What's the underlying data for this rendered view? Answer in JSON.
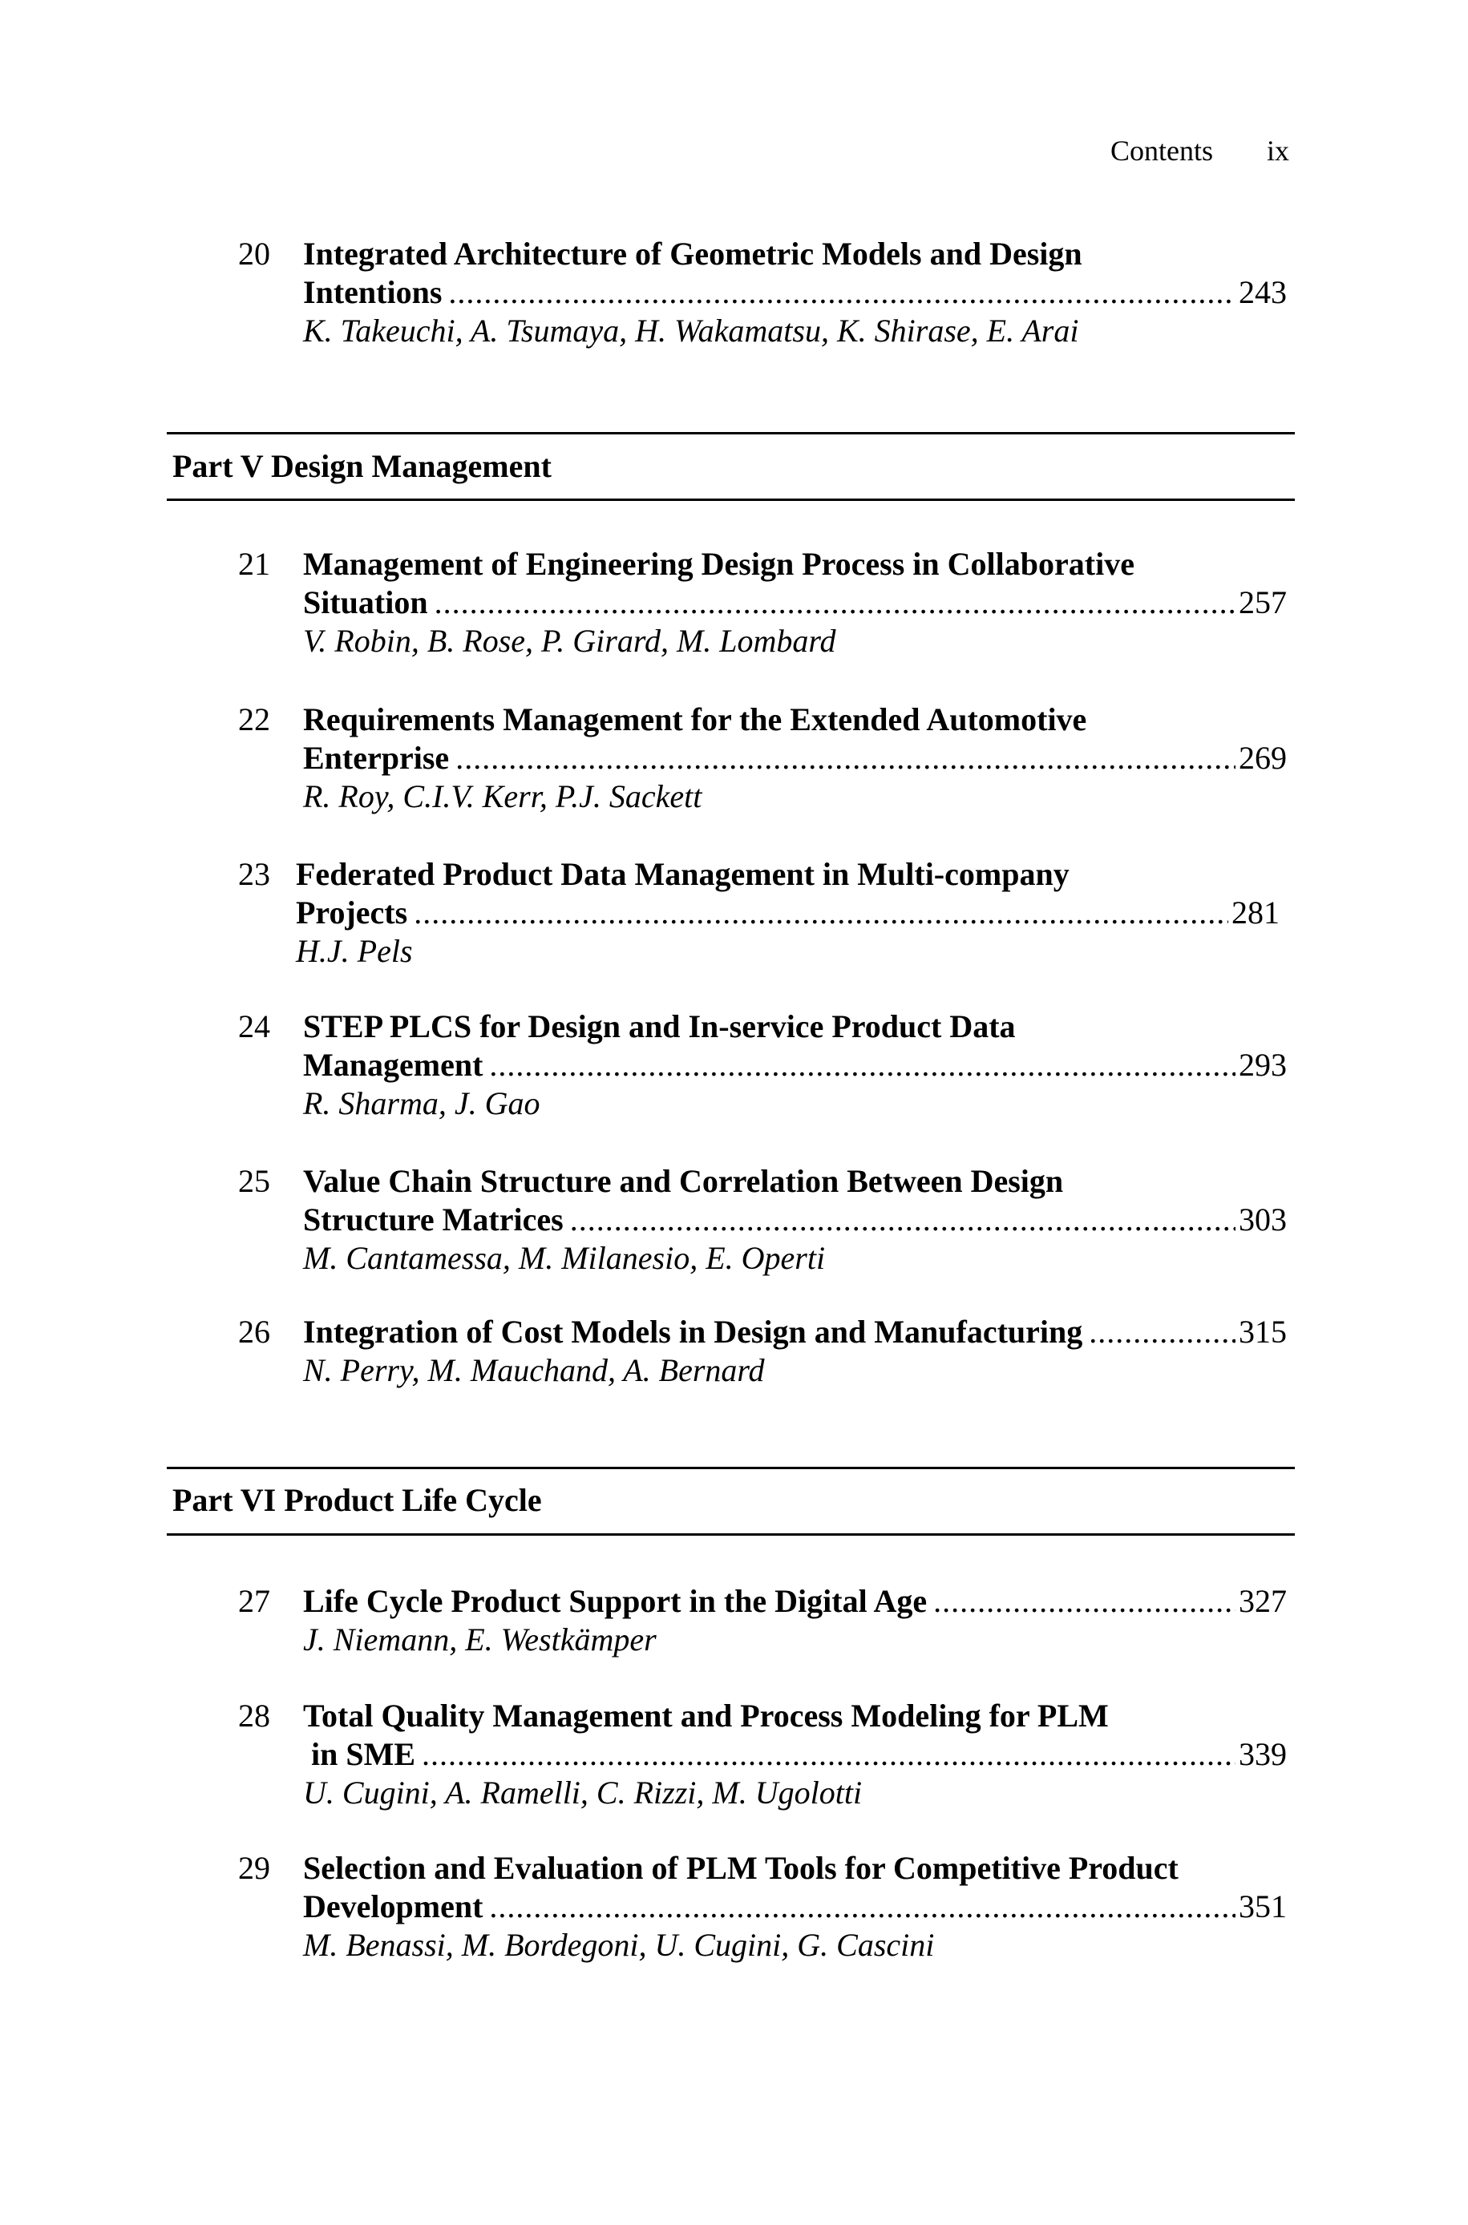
{
  "header": {
    "section": "Contents",
    "page": "ix"
  },
  "parts": [
    {
      "label": "Part V Design Management"
    },
    {
      "label": "Part VI Product Life Cycle"
    }
  ],
  "entries": [
    {
      "number": "20",
      "title_lines": [
        "Integrated Architecture of Geometric Models and Design",
        "Intentions"
      ],
      "page": "243",
      "authors": "K. Takeuchi, A. Tsumaya, H. Wakamatsu, K. Shirase, E. Arai"
    },
    {
      "number": "21",
      "title_lines": [
        "Management of Engineering Design Process in Collaborative",
        "Situation"
      ],
      "page": "257",
      "authors": "V. Robin, B. Rose, P. Girard, M. Lombard"
    },
    {
      "number": "22",
      "title_lines": [
        "Requirements Management for the Extended Automotive",
        "Enterprise"
      ],
      "page": "269",
      "authors": "R. Roy, C.I.V. Kerr, P.J. Sackett"
    },
    {
      "number": "23",
      "title_lines": [
        "Federated Product Data Management in Multi-company",
        "Projects"
      ],
      "page": "281",
      "authors": "H.J. Pels"
    },
    {
      "number": "24",
      "title_lines": [
        "STEP PLCS for Design and In-service Product Data",
        "Management"
      ],
      "page": "293",
      "authors": "R. Sharma, J. Gao"
    },
    {
      "number": "25",
      "title_lines": [
        "Value Chain Structure and Correlation Between Design",
        "Structure Matrices"
      ],
      "page": "303",
      "authors": "M. Cantamessa, M. Milanesio, E. Operti"
    },
    {
      "number": "26",
      "title_lines": [
        "Integration of Cost Models in Design and Manufacturing"
      ],
      "page": "315",
      "authors": "N. Perry, M. Mauchand, A. Bernard"
    },
    {
      "number": "27",
      "title_lines": [
        "Life Cycle Product Support in the Digital Age"
      ],
      "page": "327",
      "authors": "J. Niemann, E. Westkämper"
    },
    {
      "number": "28",
      "title_lines": [
        "Total Quality Management and Process Modeling for PLM",
        " in SME"
      ],
      "page": "339",
      "authors": "U. Cugini, A. Ramelli, C. Rizzi, M. Ugolotti"
    },
    {
      "number": "29",
      "title_lines": [
        "Selection and Evaluation of PLM Tools for Competitive Product",
        "Development"
      ],
      "page": "351",
      "authors": "M. Benassi, M. Bordegoni, U. Cugini, G. Cascini"
    }
  ]
}
